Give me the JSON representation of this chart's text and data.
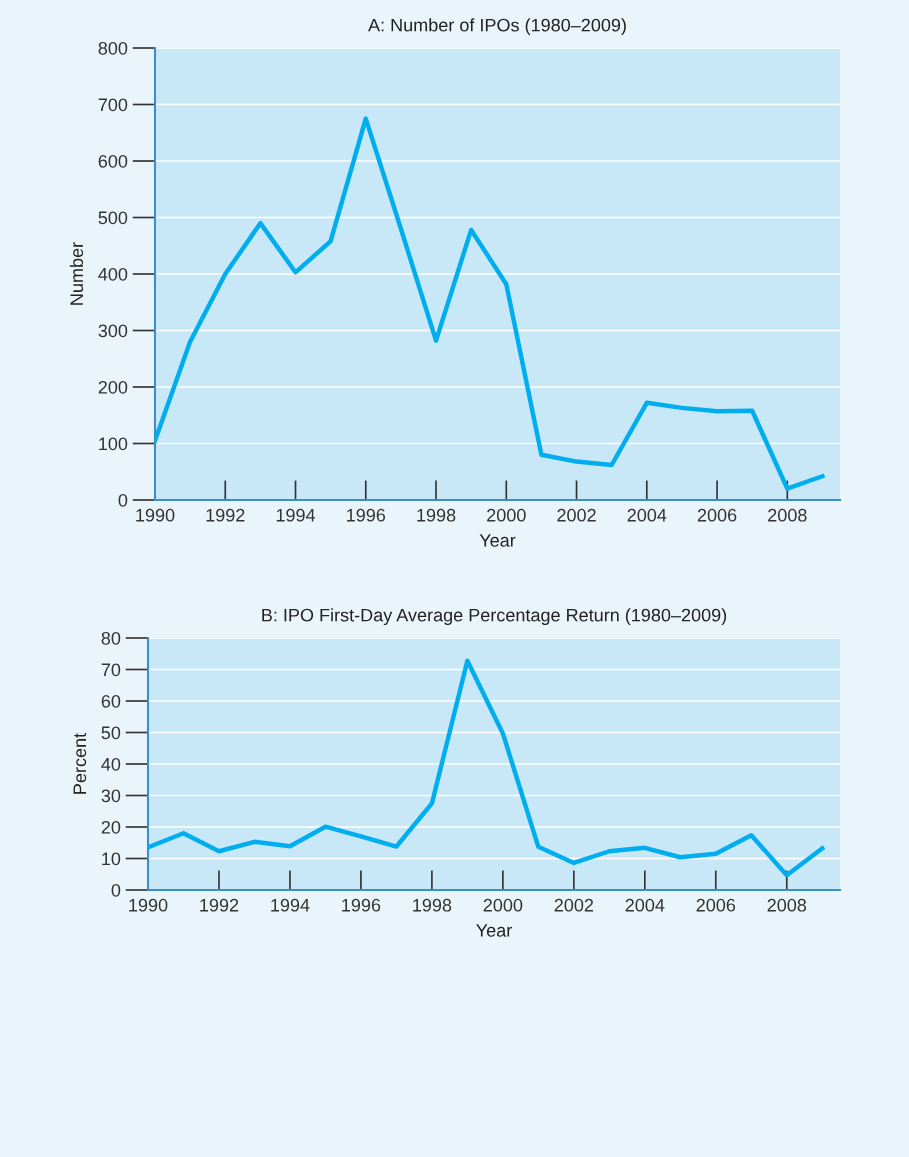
{
  "chart_data": [
    {
      "type": "line",
      "title": "A: Number of IPOs (1980–2009)",
      "xlabel": "Year",
      "ylabel": "Number",
      "x": [
        1990,
        1991,
        1992,
        1993,
        1994,
        1995,
        1996,
        1997,
        1998,
        1999,
        2000,
        2001,
        2002,
        2003,
        2004,
        2005,
        2006,
        2007,
        2008,
        2009
      ],
      "series": [
        {
          "color": "#00aeef",
          "values": [
            105,
            280,
            400,
            490,
            403,
            458,
            675,
            480,
            282,
            478,
            382,
            80,
            68,
            62,
            172,
            163,
            157,
            158,
            20,
            42
          ]
        }
      ],
      "xlim": [
        1990,
        2009.5
      ],
      "xticks": [
        1990,
        1992,
        1994,
        1996,
        1998,
        2000,
        2002,
        2004,
        2006,
        2008
      ],
      "ylim": [
        0,
        800
      ],
      "yticks": [
        0,
        100,
        200,
        300,
        400,
        500,
        600,
        700,
        800
      ],
      "grid": "y",
      "marker": "none",
      "line_style": "solid"
    },
    {
      "type": "line",
      "title": "B: IPO First-Day Average Percentage Return (1980–2009)",
      "xlabel": "Year",
      "ylabel": "Percent",
      "x": [
        1990,
        1991,
        1992,
        1993,
        1994,
        1995,
        1996,
        1997,
        1998,
        1999,
        2000,
        2001,
        2002,
        2003,
        2004,
        2005,
        2006,
        2007,
        2008,
        2009
      ],
      "series": [
        {
          "color": "#00aeef",
          "values": [
            13.5,
            18,
            12.3,
            15.3,
            13.9,
            20.1,
            17,
            13.8,
            27.5,
            72.8,
            49.7,
            13.7,
            8.6,
            12.3,
            13.4,
            10.4,
            11.5,
            17.4,
            4.7,
            13.2
          ]
        }
      ],
      "xlim": [
        1990,
        2009.5
      ],
      "xticks": [
        1990,
        1992,
        1994,
        1996,
        1998,
        2000,
        2002,
        2004,
        2006,
        2008
      ],
      "ylim": [
        0,
        80
      ],
      "yticks": [
        0,
        10,
        20,
        30,
        40,
        50,
        60,
        70,
        80
      ],
      "grid": "y",
      "marker": "none",
      "line_style": "solid"
    }
  ]
}
